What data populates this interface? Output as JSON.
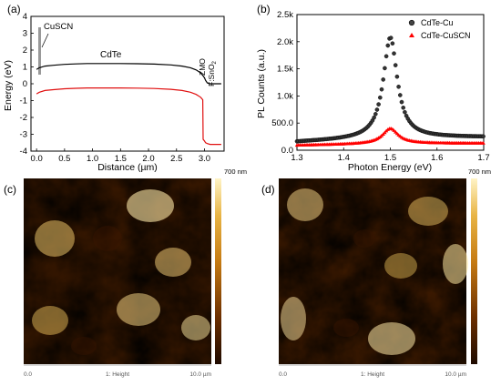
{
  "chart_data": [
    {
      "panel_label": "(a)",
      "type": "line",
      "xlabel": "Distance (µm)",
      "ylabel": "Energy (eV)",
      "xlim": [
        -0.1,
        3.35
      ],
      "ylim": [
        -4,
        4
      ],
      "xticks": [
        "0.0",
        "0.5",
        "1.0",
        "1.5",
        "2.0",
        "2.5",
        "3.0"
      ],
      "yticks": [
        "4",
        "3",
        "2",
        "1",
        "0",
        "-1",
        "-2",
        "-3",
        "-4"
      ],
      "annotations": [
        "CuSCN",
        "CdTe",
        "ZMO",
        "F:SnO",
        "2"
      ],
      "colors": {
        "conduction": "#000000",
        "valence": "#e01010",
        "cuscn_bar": "#999999"
      },
      "series": [
        {
          "color": "#000000",
          "x": [
            0.0,
            0.05,
            0.15,
            0.3,
            0.5,
            0.7,
            0.9,
            1.2,
            1.5,
            1.8,
            2.1,
            2.4,
            2.6,
            2.75,
            2.85,
            2.93,
            2.97,
            3.0,
            3.02,
            3.05,
            3.1,
            3.2,
            3.3
          ],
          "y": [
            0.85,
            0.95,
            1.05,
            1.1,
            1.15,
            1.18,
            1.2,
            1.2,
            1.2,
            1.19,
            1.17,
            1.12,
            1.05,
            0.95,
            0.82,
            0.65,
            0.5,
            0.35,
            0.2,
            0.05,
            0.0,
            0.0,
            0.0
          ]
        },
        {
          "color": "#e01010",
          "x": [
            0.0,
            0.05,
            0.15,
            0.3,
            0.5,
            0.7,
            0.9,
            1.2,
            1.5,
            1.8,
            2.1,
            2.4,
            2.6,
            2.75,
            2.85,
            2.93,
            2.97,
            2.975,
            3.0,
            3.02,
            3.05,
            3.1,
            3.2,
            3.3
          ],
          "y": [
            -0.6,
            -0.5,
            -0.4,
            -0.35,
            -0.3,
            -0.27,
            -0.25,
            -0.25,
            -0.25,
            -0.26,
            -0.28,
            -0.33,
            -0.4,
            -0.5,
            -0.63,
            -0.8,
            -0.95,
            -3.3,
            -3.4,
            -3.5,
            -3.55,
            -3.6,
            -3.6,
            -3.6
          ]
        }
      ]
    },
    {
      "panel_label": "(b)",
      "type": "scatter",
      "xlabel": "Photon Energy (eV)",
      "ylabel": "PL Counts (a.u.)",
      "xlim": [
        1.3,
        1.7
      ],
      "ylim": [
        0,
        2500
      ],
      "xticks": [
        "1.3",
        "1.4",
        "1.5",
        "1.6",
        "1.7"
      ],
      "yticks": [
        "0.0",
        "500.0",
        "1.0k",
        "1.5k",
        "2.0k",
        "2.5k"
      ],
      "legend_position": "top-right",
      "series": [
        {
          "name": "CdTe-Cu",
          "color": "#000000",
          "marker": "circle",
          "peak_x": 1.5,
          "peak_y": 2080,
          "width": 0.018,
          "base": 150,
          "slope": 380
        },
        {
          "name": "CdTe-CuSCN",
          "color": "#ff0000",
          "marker": "triangle",
          "peak_x": 1.5,
          "peak_y": 400,
          "width": 0.02,
          "base": 90,
          "slope": 160
        }
      ]
    }
  ],
  "afm_panels": [
    {
      "panel_label": "(c)",
      "scale_max": "700 nm",
      "axis_left": "0.0",
      "axis_mid": "1: Height",
      "axis_right": "10.0 µm"
    },
    {
      "panel_label": "(d)",
      "scale_max": "700 nm",
      "axis_left": "0.0",
      "axis_mid": "1: Height",
      "axis_right": "10.0 µm"
    }
  ]
}
